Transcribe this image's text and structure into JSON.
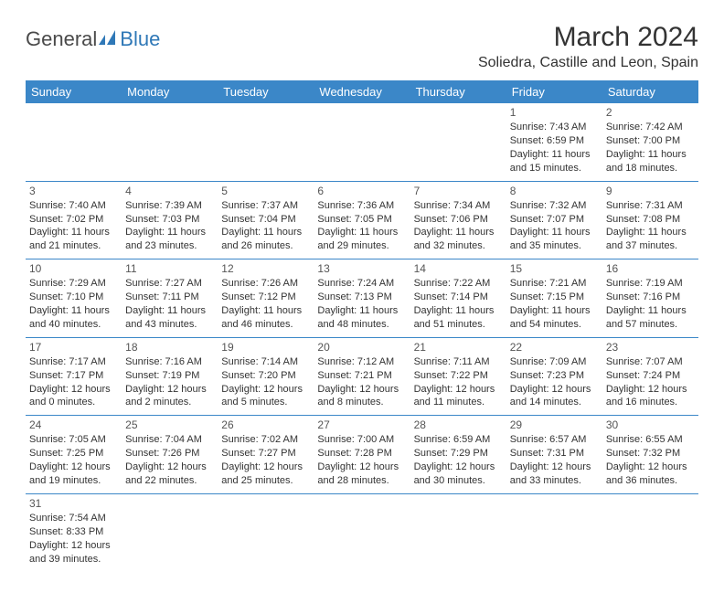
{
  "brand": {
    "part1": "General",
    "part2": "Blue"
  },
  "title": "March 2024",
  "location": "Soliedra, Castille and Leon, Spain",
  "colors": {
    "header_bg": "#3b87c8",
    "header_text": "#ffffff",
    "border": "#3b87c8",
    "body_text": "#333333",
    "brand_gray": "#4a4a4a",
    "brand_blue": "#2f78b7",
    "page_bg": "#ffffff"
  },
  "weekdays": [
    "Sunday",
    "Monday",
    "Tuesday",
    "Wednesday",
    "Thursday",
    "Friday",
    "Saturday"
  ],
  "weeks": [
    [
      null,
      null,
      null,
      null,
      null,
      {
        "n": "1",
        "sr": "Sunrise: 7:43 AM",
        "ss": "Sunset: 6:59 PM",
        "d1": "Daylight: 11 hours",
        "d2": "and 15 minutes."
      },
      {
        "n": "2",
        "sr": "Sunrise: 7:42 AM",
        "ss": "Sunset: 7:00 PM",
        "d1": "Daylight: 11 hours",
        "d2": "and 18 minutes."
      }
    ],
    [
      {
        "n": "3",
        "sr": "Sunrise: 7:40 AM",
        "ss": "Sunset: 7:02 PM",
        "d1": "Daylight: 11 hours",
        "d2": "and 21 minutes."
      },
      {
        "n": "4",
        "sr": "Sunrise: 7:39 AM",
        "ss": "Sunset: 7:03 PM",
        "d1": "Daylight: 11 hours",
        "d2": "and 23 minutes."
      },
      {
        "n": "5",
        "sr": "Sunrise: 7:37 AM",
        "ss": "Sunset: 7:04 PM",
        "d1": "Daylight: 11 hours",
        "d2": "and 26 minutes."
      },
      {
        "n": "6",
        "sr": "Sunrise: 7:36 AM",
        "ss": "Sunset: 7:05 PM",
        "d1": "Daylight: 11 hours",
        "d2": "and 29 minutes."
      },
      {
        "n": "7",
        "sr": "Sunrise: 7:34 AM",
        "ss": "Sunset: 7:06 PM",
        "d1": "Daylight: 11 hours",
        "d2": "and 32 minutes."
      },
      {
        "n": "8",
        "sr": "Sunrise: 7:32 AM",
        "ss": "Sunset: 7:07 PM",
        "d1": "Daylight: 11 hours",
        "d2": "and 35 minutes."
      },
      {
        "n": "9",
        "sr": "Sunrise: 7:31 AM",
        "ss": "Sunset: 7:08 PM",
        "d1": "Daylight: 11 hours",
        "d2": "and 37 minutes."
      }
    ],
    [
      {
        "n": "10",
        "sr": "Sunrise: 7:29 AM",
        "ss": "Sunset: 7:10 PM",
        "d1": "Daylight: 11 hours",
        "d2": "and 40 minutes."
      },
      {
        "n": "11",
        "sr": "Sunrise: 7:27 AM",
        "ss": "Sunset: 7:11 PM",
        "d1": "Daylight: 11 hours",
        "d2": "and 43 minutes."
      },
      {
        "n": "12",
        "sr": "Sunrise: 7:26 AM",
        "ss": "Sunset: 7:12 PM",
        "d1": "Daylight: 11 hours",
        "d2": "and 46 minutes."
      },
      {
        "n": "13",
        "sr": "Sunrise: 7:24 AM",
        "ss": "Sunset: 7:13 PM",
        "d1": "Daylight: 11 hours",
        "d2": "and 48 minutes."
      },
      {
        "n": "14",
        "sr": "Sunrise: 7:22 AM",
        "ss": "Sunset: 7:14 PM",
        "d1": "Daylight: 11 hours",
        "d2": "and 51 minutes."
      },
      {
        "n": "15",
        "sr": "Sunrise: 7:21 AM",
        "ss": "Sunset: 7:15 PM",
        "d1": "Daylight: 11 hours",
        "d2": "and 54 minutes."
      },
      {
        "n": "16",
        "sr": "Sunrise: 7:19 AM",
        "ss": "Sunset: 7:16 PM",
        "d1": "Daylight: 11 hours",
        "d2": "and 57 minutes."
      }
    ],
    [
      {
        "n": "17",
        "sr": "Sunrise: 7:17 AM",
        "ss": "Sunset: 7:17 PM",
        "d1": "Daylight: 12 hours",
        "d2": "and 0 minutes."
      },
      {
        "n": "18",
        "sr": "Sunrise: 7:16 AM",
        "ss": "Sunset: 7:19 PM",
        "d1": "Daylight: 12 hours",
        "d2": "and 2 minutes."
      },
      {
        "n": "19",
        "sr": "Sunrise: 7:14 AM",
        "ss": "Sunset: 7:20 PM",
        "d1": "Daylight: 12 hours",
        "d2": "and 5 minutes."
      },
      {
        "n": "20",
        "sr": "Sunrise: 7:12 AM",
        "ss": "Sunset: 7:21 PM",
        "d1": "Daylight: 12 hours",
        "d2": "and 8 minutes."
      },
      {
        "n": "21",
        "sr": "Sunrise: 7:11 AM",
        "ss": "Sunset: 7:22 PM",
        "d1": "Daylight: 12 hours",
        "d2": "and 11 minutes."
      },
      {
        "n": "22",
        "sr": "Sunrise: 7:09 AM",
        "ss": "Sunset: 7:23 PM",
        "d1": "Daylight: 12 hours",
        "d2": "and 14 minutes."
      },
      {
        "n": "23",
        "sr": "Sunrise: 7:07 AM",
        "ss": "Sunset: 7:24 PM",
        "d1": "Daylight: 12 hours",
        "d2": "and 16 minutes."
      }
    ],
    [
      {
        "n": "24",
        "sr": "Sunrise: 7:05 AM",
        "ss": "Sunset: 7:25 PM",
        "d1": "Daylight: 12 hours",
        "d2": "and 19 minutes."
      },
      {
        "n": "25",
        "sr": "Sunrise: 7:04 AM",
        "ss": "Sunset: 7:26 PM",
        "d1": "Daylight: 12 hours",
        "d2": "and 22 minutes."
      },
      {
        "n": "26",
        "sr": "Sunrise: 7:02 AM",
        "ss": "Sunset: 7:27 PM",
        "d1": "Daylight: 12 hours",
        "d2": "and 25 minutes."
      },
      {
        "n": "27",
        "sr": "Sunrise: 7:00 AM",
        "ss": "Sunset: 7:28 PM",
        "d1": "Daylight: 12 hours",
        "d2": "and 28 minutes."
      },
      {
        "n": "28",
        "sr": "Sunrise: 6:59 AM",
        "ss": "Sunset: 7:29 PM",
        "d1": "Daylight: 12 hours",
        "d2": "and 30 minutes."
      },
      {
        "n": "29",
        "sr": "Sunrise: 6:57 AM",
        "ss": "Sunset: 7:31 PM",
        "d1": "Daylight: 12 hours",
        "d2": "and 33 minutes."
      },
      {
        "n": "30",
        "sr": "Sunrise: 6:55 AM",
        "ss": "Sunset: 7:32 PM",
        "d1": "Daylight: 12 hours",
        "d2": "and 36 minutes."
      }
    ],
    [
      {
        "n": "31",
        "sr": "Sunrise: 7:54 AM",
        "ss": "Sunset: 8:33 PM",
        "d1": "Daylight: 12 hours",
        "d2": "and 39 minutes."
      },
      null,
      null,
      null,
      null,
      null,
      null
    ]
  ]
}
